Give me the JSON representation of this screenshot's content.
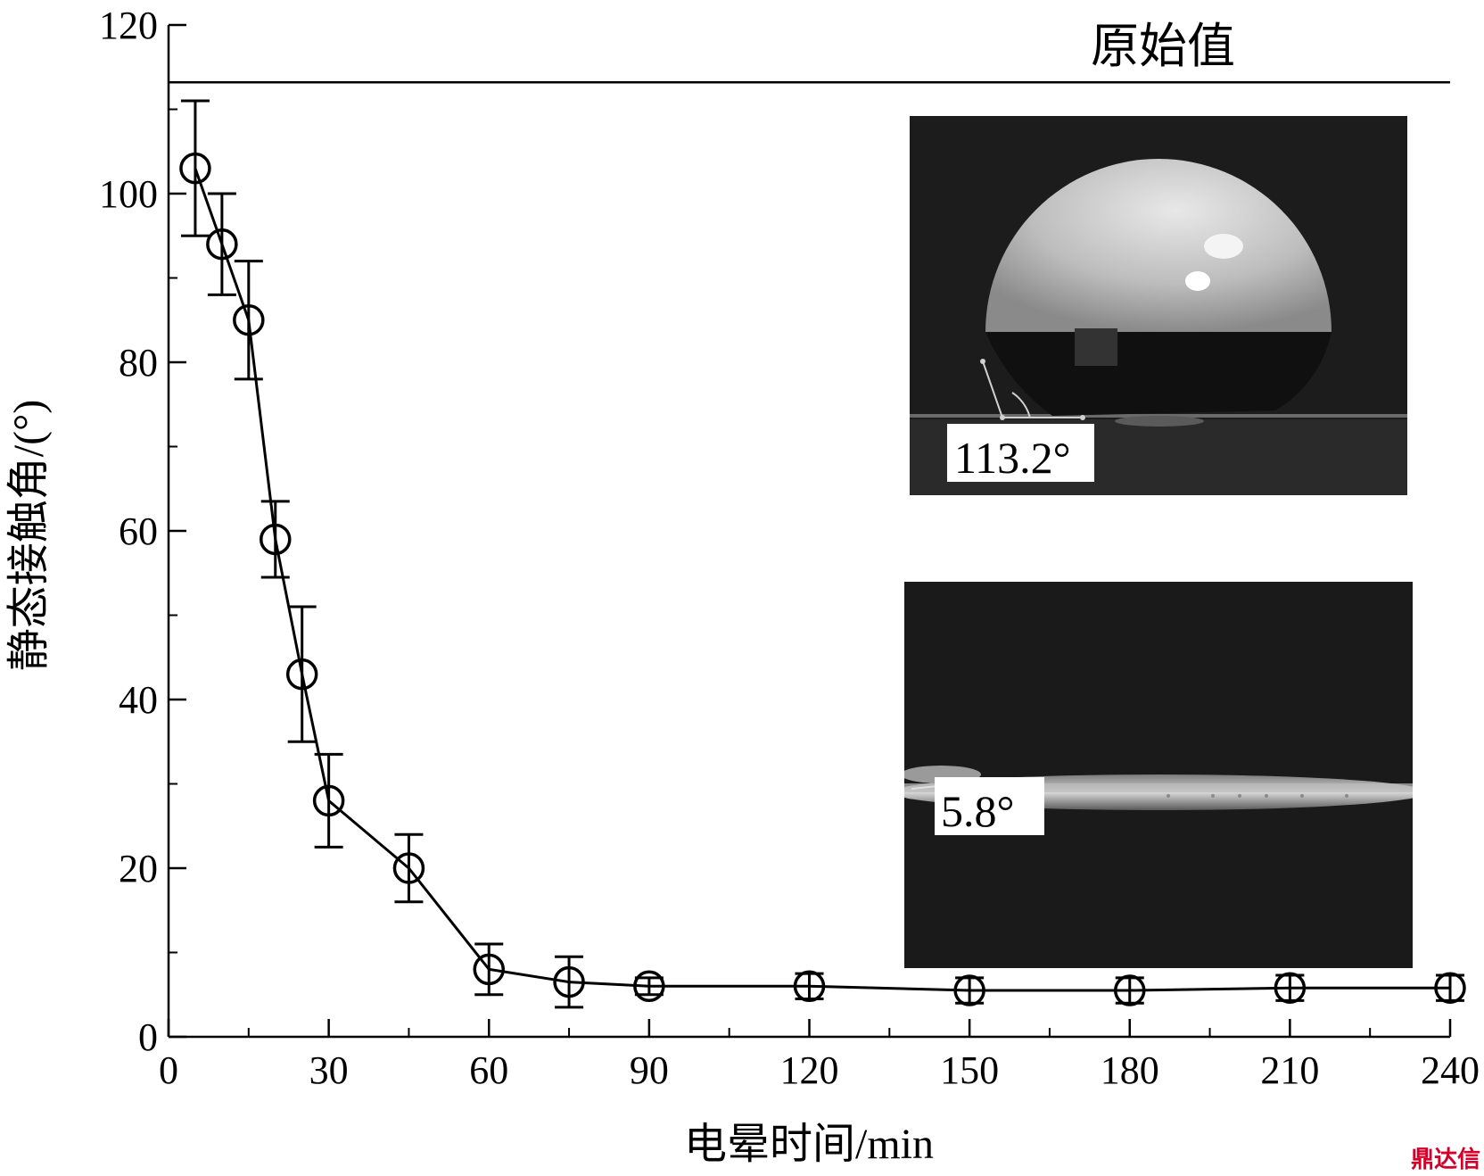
{
  "chart_data": {
    "type": "line",
    "xlabel": "电晕时间/min",
    "ylabel": "静态接触角/(°)",
    "xlim": [
      0,
      240
    ],
    "ylim": [
      0,
      120
    ],
    "x_ticks": [
      "0",
      "30",
      "60",
      "90",
      "120",
      "150",
      "180",
      "210",
      "240"
    ],
    "y_ticks": [
      "0",
      "20",
      "40",
      "60",
      "80",
      "100",
      "120"
    ],
    "x_tick_values": [
      0,
      30,
      60,
      90,
      120,
      150,
      180,
      210,
      240
    ],
    "y_tick_values": [
      0,
      20,
      40,
      60,
      80,
      100,
      120
    ],
    "reference_line": {
      "value": 113.2,
      "label": "原始值"
    },
    "series": [
      {
        "marker": "open-circle",
        "x": [
          5,
          10,
          15,
          20,
          25,
          30,
          45,
          60,
          75,
          90,
          120,
          150,
          180,
          210,
          240
        ],
        "y": [
          103,
          94,
          85,
          59,
          43,
          28,
          20,
          8,
          6.5,
          6,
          6,
          5.5,
          5.5,
          5.8,
          5.8
        ],
        "error": [
          8,
          6,
          7,
          4.5,
          8,
          5.5,
          4,
          3,
          3,
          1,
          1.5,
          1.5,
          1.5,
          1.5,
          1.5
        ]
      }
    ],
    "insets": [
      {
        "label": "113.2°"
      },
      {
        "label": "5.8°"
      }
    ],
    "watermark": "鼎达信"
  }
}
